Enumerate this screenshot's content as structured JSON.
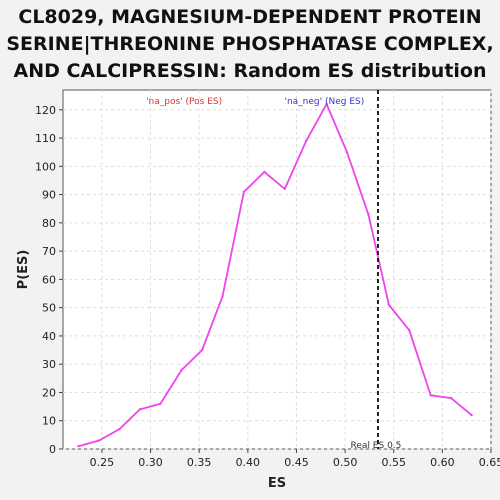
{
  "chart_data": {
    "type": "line",
    "title_lines": [
      "CL8029, MAGNESIUM-DEPENDENT PROTEIN",
      "SERINE|THREONINE PHOSPHATASE COMPLEX,",
      "AND CALCIPRESSIN: Random ES distribution"
    ],
    "xlabel": "ES",
    "ylabel": "P(ES)",
    "xlim": [
      0.21,
      0.65
    ],
    "ylim": [
      0,
      127
    ],
    "x_ticks": [
      "0.25",
      "0.30",
      "0.35",
      "0.40",
      "0.45",
      "0.50",
      "0.55",
      "0.60",
      "0.65"
    ],
    "y_ticks": [
      "0",
      "10",
      "20",
      "30",
      "40",
      "50",
      "60",
      "70",
      "80",
      "90",
      "100",
      "110",
      "120"
    ],
    "grid": true,
    "series": [
      {
        "color": "#ee44ee",
        "x": [
          0.226,
          0.247,
          0.268,
          0.289,
          0.31,
          0.332,
          0.353,
          0.374,
          0.396,
          0.417,
          0.438,
          0.46,
          0.481,
          0.502,
          0.524,
          0.545,
          0.566,
          0.588,
          0.609,
          0.63
        ],
        "y": [
          1,
          3,
          7,
          14,
          16,
          28,
          35,
          54,
          91,
          98,
          92,
          109,
          122,
          105,
          83,
          51,
          42,
          19,
          18,
          12
        ]
      }
    ],
    "real_es": {
      "value": 0.5338,
      "label": "Real ES 0.5"
    },
    "annotations": {
      "pos_label": "'na_pos' (Pos ES)",
      "pos_color": "#dd3333",
      "neg_label": "'na_neg' (Neg ES)",
      "neg_color": "#3333cc"
    }
  }
}
